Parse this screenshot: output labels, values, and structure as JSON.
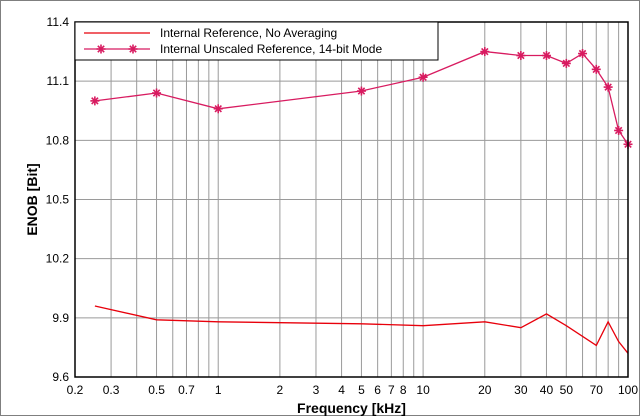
{
  "chart_data": {
    "type": "line",
    "xscale": "log",
    "xlim": [
      0.2,
      100
    ],
    "ylim": [
      9.6,
      11.4
    ],
    "xlabel": "Frequency [kHz]",
    "ylabel": "ENOB [Bit]",
    "xticks": [
      {
        "value": 0.2,
        "label": "0.2"
      },
      {
        "value": 0.3,
        "label": "0.3"
      },
      {
        "value": 0.5,
        "label": "0.5"
      },
      {
        "value": 0.7,
        "label": "0.7"
      },
      {
        "value": 1,
        "label": "1"
      },
      {
        "value": 2,
        "label": "2"
      },
      {
        "value": 3,
        "label": "3"
      },
      {
        "value": 4,
        "label": "4"
      },
      {
        "value": 5,
        "label": "5"
      },
      {
        "value": 6,
        "label": "6"
      },
      {
        "value": 7,
        "label": "7"
      },
      {
        "value": 8,
        "label": "8"
      },
      {
        "value": 10,
        "label": "10"
      },
      {
        "value": 20,
        "label": "20"
      },
      {
        "value": 30,
        "label": "30"
      },
      {
        "value": 40,
        "label": "40"
      },
      {
        "value": 50,
        "label": "50"
      },
      {
        "value": 70,
        "label": "70"
      },
      {
        "value": 100,
        "label": "100"
      }
    ],
    "yticks": [
      {
        "value": 9.6,
        "label": "9.6"
      },
      {
        "value": 9.9,
        "label": "9.9"
      },
      {
        "value": 10.2,
        "label": "10.2"
      },
      {
        "value": 10.5,
        "label": "10.5"
      },
      {
        "value": 10.8,
        "label": "10.8"
      },
      {
        "value": 11.1,
        "label": "11.1"
      },
      {
        "value": 11.4,
        "label": "11.4"
      }
    ],
    "minor_gridlines_x": [
      0.2,
      0.3,
      0.4,
      0.5,
      0.6,
      0.7,
      0.8,
      0.9,
      1,
      2,
      3,
      4,
      5,
      6,
      7,
      8,
      9,
      10,
      20,
      30,
      40,
      50,
      60,
      70,
      80,
      90,
      100
    ],
    "grid": true,
    "legend_position": "top-left",
    "series": [
      {
        "name": "Internal Reference, No Averaging",
        "color": "#e8000b",
        "marker": "none",
        "x": [
          0.25,
          0.5,
          1,
          5,
          10,
          20,
          30,
          40,
          50,
          70,
          80,
          90,
          100
        ],
        "y": [
          9.96,
          9.89,
          9.88,
          9.87,
          9.86,
          9.88,
          9.85,
          9.92,
          9.86,
          9.76,
          9.88,
          9.78,
          9.72
        ]
      },
      {
        "name": "Internal Unscaled Reference, 14-bit Mode",
        "color": "#d81b60",
        "marker": "asterisk",
        "x": [
          0.25,
          0.5,
          1,
          5,
          10,
          20,
          30,
          40,
          50,
          60,
          70,
          80,
          90,
          100
        ],
        "y": [
          11.0,
          11.04,
          10.96,
          11.05,
          11.12,
          11.25,
          11.23,
          11.23,
          11.19,
          11.24,
          11.16,
          11.07,
          10.85,
          10.78
        ]
      }
    ]
  }
}
